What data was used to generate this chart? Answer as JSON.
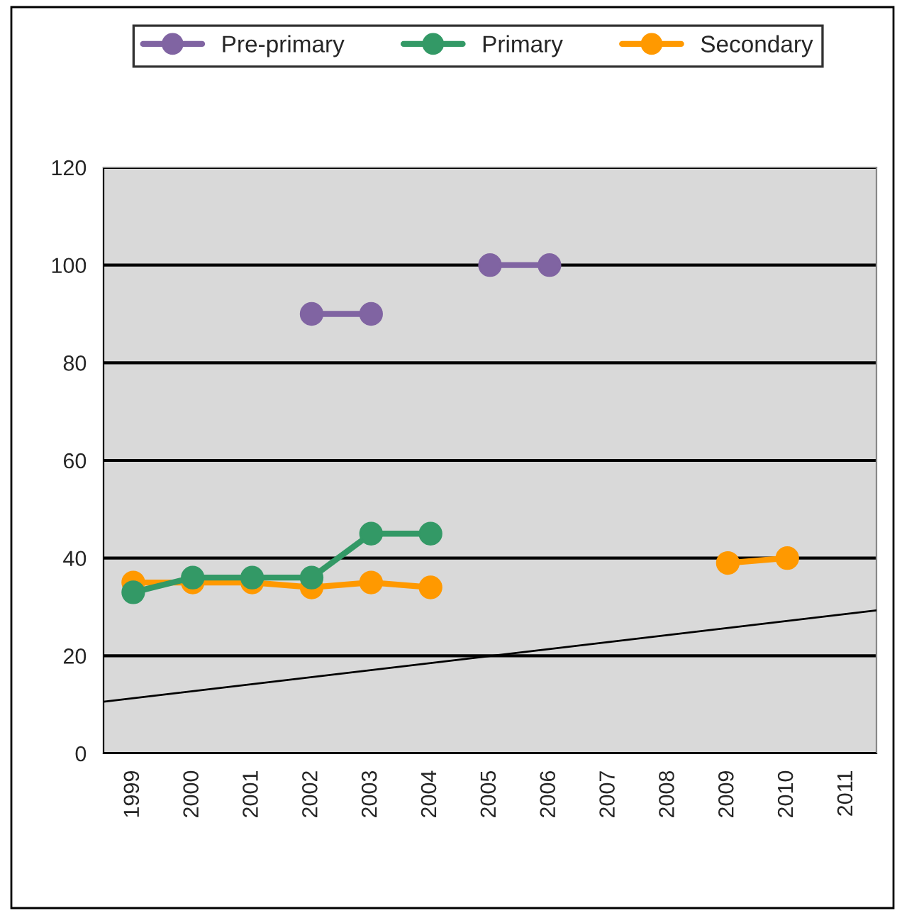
{
  "chart_data": {
    "type": "line",
    "x": [
      1999,
      2000,
      2001,
      2002,
      2003,
      2004,
      2005,
      2006,
      2007,
      2008,
      2009,
      2010
    ],
    "xlim": [
      1998.5,
      2011.5
    ],
    "xticks": [
      1999,
      2000,
      2001,
      2002,
      2003,
      2004,
      2005,
      2006,
      2007,
      2008,
      2009,
      2010,
      2011
    ],
    "ylim": [
      0,
      120
    ],
    "yticks": [
      0,
      20,
      40,
      60,
      80,
      100,
      120
    ],
    "grid": "y",
    "legend": "top",
    "marker": "circle",
    "line_style": "solid",
    "series": [
      {
        "name": "Pre-primary",
        "color": "#8064a2",
        "values": [
          null,
          null,
          null,
          90,
          90,
          null,
          100,
          100,
          null,
          null,
          null,
          null
        ]
      },
      {
        "name": "Primary",
        "color": "#339966",
        "values": [
          33,
          36,
          36,
          36,
          45,
          45,
          null,
          null,
          null,
          null,
          null,
          null
        ]
      },
      {
        "name": "Secondary",
        "color": "#ff9900",
        "values": [
          35,
          35,
          35,
          34,
          35,
          34,
          null,
          null,
          null,
          null,
          39,
          40
        ]
      },
      {
        "type": "line",
        "color": "#000000",
        "marker": "none",
        "x": [
          1998.5,
          2011.5
        ],
        "values": [
          10.6,
          29.3
        ]
      }
    ]
  }
}
